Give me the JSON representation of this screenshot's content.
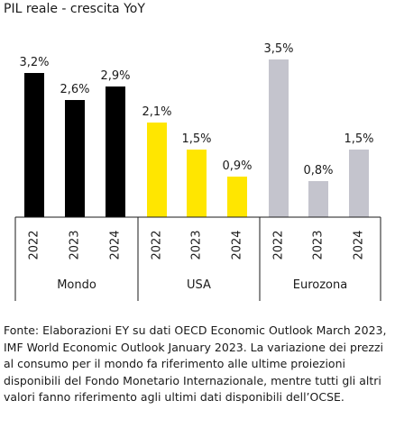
{
  "chart_data": {
    "type": "bar",
    "title": "PIL reale - crescita YoY",
    "groups": [
      {
        "name": "Mondo",
        "color": "#000000",
        "categories": [
          "2022",
          "2023",
          "2024"
        ],
        "values": [
          3.2,
          2.6,
          2.9
        ],
        "value_labels": [
          "3,2%",
          "2,6%",
          "2,9%"
        ]
      },
      {
        "name": "USA",
        "color": "#ffe600",
        "categories": [
          "2022",
          "2023",
          "2024"
        ],
        "values": [
          2.1,
          1.5,
          0.9
        ],
        "value_labels": [
          "2,1%",
          "1,5%",
          "0,9%"
        ]
      },
      {
        "name": "Eurozona",
        "color": "#c4c4cd",
        "categories": [
          "2022",
          "2023",
          "2024"
        ],
        "values": [
          3.5,
          0.8,
          1.5
        ],
        "value_labels": [
          "3,5%",
          "0,8%",
          "1,5%"
        ]
      }
    ],
    "ylim": [
      0,
      3.5
    ],
    "grid": false,
    "legend": "none"
  },
  "footnote": "Fonte: Elaborazioni EY su dati OECD Economic Outlook March 2023, IMF World Economic Outlook January 2023. La variazione dei prezzi al consumo per il mondo fa riferimento alle ultime proiezioni disponibili del Fondo Monetario Internazionale, mentre tutti gli altri valori fanno riferimento agli ultimi dati disponibili dell’OCSE."
}
